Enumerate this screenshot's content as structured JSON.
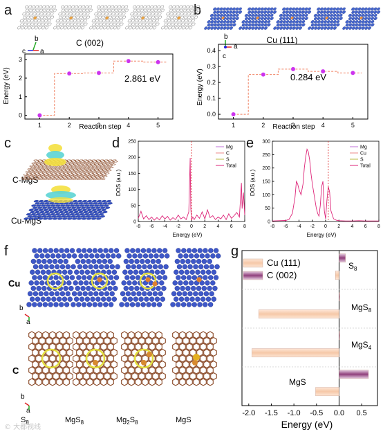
{
  "panels": {
    "a": "a",
    "b": "b",
    "c": "c",
    "d": "d",
    "e": "e",
    "f": "f",
    "g": "g"
  },
  "chart_data": [
    {
      "panel": "a",
      "type": "line",
      "title": "C (002)",
      "xlabel": "Reaction step",
      "ylabel": "Energy (eV)",
      "x": [
        1,
        2,
        3,
        4,
        5
      ],
      "y": [
        0,
        2.25,
        2.28,
        2.92,
        2.861
      ],
      "xlim": [
        0.5,
        5.5
      ],
      "ylim": [
        -0.2,
        3.3
      ],
      "yticks": [
        0,
        1,
        2,
        3
      ],
      "xticks": [
        1,
        2,
        3,
        4,
        5
      ],
      "annotation": "2.861 eV",
      "colors": {
        "marker": "#cc33ee",
        "line": "#f08060"
      },
      "axis_glyph": {
        "up": "b",
        "left": "c",
        "right": "a"
      }
    },
    {
      "panel": "b",
      "type": "line",
      "title": "Cu (111)",
      "xlabel": "Reaction step",
      "ylabel": "Energy (eV)",
      "x": [
        1,
        2,
        3,
        4,
        5
      ],
      "y": [
        0,
        0.25,
        0.284,
        0.27,
        0.26
      ],
      "xlim": [
        0.5,
        5.5
      ],
      "ylim": [
        -0.03,
        0.44
      ],
      "yticks": [
        0.0,
        0.1,
        0.2,
        0.3,
        0.4
      ],
      "ytick_labels": [
        "0.0",
        "0.1",
        "0.2",
        "0.3",
        "0.4"
      ],
      "xticks": [
        1,
        2,
        3,
        4,
        5
      ],
      "annotation": "0.284 eV",
      "colors": {
        "marker": "#cc33ee",
        "line": "#f08060"
      },
      "axis_glyph": {
        "up": "b",
        "right": "a",
        "down": "c"
      }
    },
    {
      "panel": "d",
      "type": "line",
      "title": "",
      "xlabel": "Energy (eV)",
      "ylabel": "DOS (a.u.)",
      "xlim": [
        -8,
        8
      ],
      "ylim": [
        0,
        250
      ],
      "xticks": [
        -8,
        -6,
        -4,
        -2,
        0,
        2,
        4,
        6,
        8
      ],
      "yticks": [
        0,
        50,
        100,
        150,
        200,
        250
      ],
      "legend": [
        "Mg",
        "C",
        "S",
        "Total"
      ],
      "legend_colors": [
        "#c070d8",
        "#ee8888",
        "#b8b840",
        "#dd2277"
      ],
      "series": [
        {
          "name": "Total",
          "x": [
            -8,
            -7.6,
            -7.2,
            -6.8,
            -6.4,
            -6,
            -5.6,
            -5.2,
            -4.8,
            -4.4,
            -4,
            -3.6,
            -3.2,
            -2.8,
            -2.4,
            -2,
            -1.6,
            -1.2,
            -0.8,
            -0.4,
            -0.2,
            -0.1,
            0,
            0.2,
            0.4,
            0.8,
            1.2,
            1.6,
            2,
            2.4,
            2.8,
            3.2,
            3.6,
            4,
            4.4,
            4.8,
            5.2,
            5.6,
            6,
            6.4,
            6.8,
            7.2,
            7.5,
            7.6,
            7.8,
            8
          ],
          "y": [
            10,
            32,
            8,
            18,
            6,
            14,
            4,
            12,
            5,
            18,
            8,
            16,
            4,
            12,
            6,
            20,
            8,
            14,
            6,
            30,
            198,
            40,
            4,
            14,
            6,
            20,
            10,
            30,
            8,
            36,
            12,
            18,
            6,
            14,
            8,
            20,
            6,
            24,
            10,
            18,
            28,
            14,
            120,
            40,
            90,
            20
          ]
        }
      ],
      "vline": 0
    },
    {
      "panel": "e",
      "type": "line",
      "title": "",
      "xlabel": "Energy (eV)",
      "ylabel": "DOS (a.u.)",
      "xlim": [
        -8,
        8
      ],
      "ylim": [
        0,
        300
      ],
      "xticks": [
        -8,
        -6,
        -4,
        -2,
        0,
        2,
        4,
        6,
        8
      ],
      "yticks": [
        0,
        50,
        100,
        150,
        200,
        250,
        300
      ],
      "legend": [
        "Mg",
        "Cu",
        "S",
        "Total"
      ],
      "legend_colors": [
        "#c070d8",
        "#ee8888",
        "#b8b840",
        "#dd2277"
      ],
      "series": [
        {
          "name": "Total",
          "x": [
            -8,
            -7,
            -6,
            -5.5,
            -5,
            -4.6,
            -4.4,
            -4.2,
            -4,
            -3.7,
            -3.4,
            -3.2,
            -3,
            -2.8,
            -2.6,
            -2.4,
            -2.2,
            -2,
            -1.8,
            -1.6,
            -1.4,
            -1.2,
            -1,
            -0.8,
            -0.6,
            -0.4,
            -0.2,
            0,
            0.2,
            0.4,
            0.6,
            0.8,
            1.2,
            1.6,
            2,
            3,
            4,
            5,
            6,
            7,
            8
          ],
          "y": [
            2,
            3,
            4,
            8,
            30,
            90,
            150,
            140,
            120,
            100,
            140,
            200,
            240,
            270,
            260,
            230,
            180,
            140,
            110,
            80,
            50,
            30,
            20,
            60,
            130,
            150,
            40,
            10,
            80,
            130,
            110,
            40,
            10,
            5,
            3,
            2,
            2,
            3,
            2,
            2,
            2
          ]
        }
      ],
      "vline": 0.4
    },
    {
      "panel": "g",
      "type": "bar",
      "orientation": "horizontal",
      "categories": [
        "S8",
        "MgS8",
        "MgS4",
        "MgS"
      ],
      "xlabel": "Energy (eV)",
      "xlim": [
        -2.15,
        0.85
      ],
      "xticks": [
        -2.0,
        -1.5,
        -1.0,
        -0.5,
        0.0,
        0.5
      ],
      "xtick_labels": [
        "-2.0",
        "-1.5",
        "-1.0",
        "-0.5",
        "0.0",
        "0.5"
      ],
      "series": [
        {
          "name": "Cu (111)",
          "values": [
            -0.08,
            -1.78,
            -1.93,
            -0.52
          ]
        },
        {
          "name": "C (002)",
          "values": [
            0.14,
            0.01,
            0.01,
            0.65
          ]
        }
      ],
      "legend_colors": [
        "#f6c8a8",
        "#a0508a"
      ]
    }
  ],
  "panel_c": {
    "top_label": "C-MgS",
    "bottom_label": "Cu-MgS"
  },
  "panel_f": {
    "row_labels": [
      "Cu",
      "C"
    ],
    "column_labels": [
      "S8",
      "MgS8",
      "Mg2S8",
      "MgS"
    ],
    "axis_glyph_top": {
      "up": "b",
      "down": "a"
    },
    "axis_glyph_bottom": {
      "up": "b",
      "down": "a"
    }
  },
  "watermark": "© 大都视线"
}
